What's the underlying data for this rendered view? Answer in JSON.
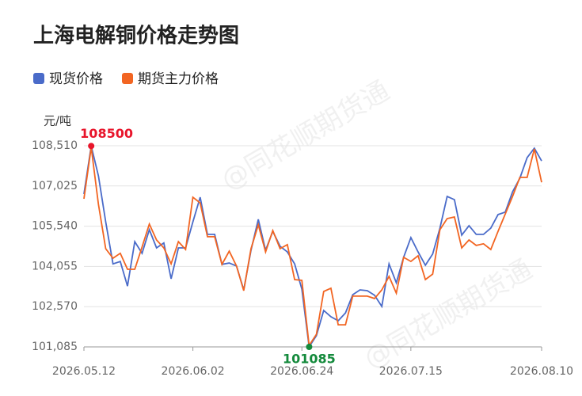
{
  "chart_data": {
    "type": "line",
    "title": "上海电解铜价格走势图",
    "y_unit": "元/吨",
    "watermark": "@同花顺期货通",
    "max_label": "108500",
    "min_label": "101085",
    "categories": [
      "2026.05.12",
      null,
      null,
      null,
      null,
      null,
      null,
      null,
      null,
      null,
      null,
      null,
      null,
      null,
      null,
      "2026.06.02",
      null,
      null,
      null,
      null,
      null,
      null,
      null,
      null,
      null,
      null,
      null,
      null,
      null,
      null,
      "2026.06.24",
      null,
      null,
      null,
      null,
      null,
      null,
      null,
      null,
      null,
      null,
      null,
      null,
      null,
      null,
      "2026.07.15",
      null,
      null,
      null,
      null,
      null,
      null,
      null,
      null,
      null,
      null,
      null,
      null,
      null,
      null,
      null,
      null,
      null,
      "2026.08.10"
    ],
    "series": [
      {
        "name": "现货价格",
        "color": "#4a6bc9",
        "values": [
          106727,
          108500,
          107400,
          105700,
          104150,
          104240,
          103330,
          104970,
          104540,
          105410,
          104740,
          104920,
          103600,
          104740,
          104740,
          105700,
          106610,
          105240,
          105240,
          104130,
          104180,
          104070,
          103190,
          104650,
          105790,
          104650,
          105350,
          104800,
          104590,
          104150,
          103220,
          101085,
          101500,
          102430,
          102200,
          102050,
          102340,
          103010,
          103190,
          103160,
          102990,
          102580,
          104150,
          103450,
          104390,
          105120,
          104590,
          104100,
          104510,
          105470,
          106640,
          106520,
          105210,
          105560,
          105240,
          105240,
          105470,
          105970,
          106060,
          106810,
          107310,
          108070,
          108420,
          107950
        ]
      },
      {
        "name": "期货主力价格",
        "color": "#f26522",
        "values": [
          106550,
          108450,
          106350,
          104710,
          104360,
          104540,
          103950,
          103950,
          104770,
          105620,
          105030,
          104740,
          104150,
          104970,
          104680,
          106610,
          106400,
          105150,
          105150,
          104130,
          104620,
          104070,
          103160,
          104710,
          105590,
          104590,
          105380,
          104710,
          104860,
          103570,
          103540,
          101140,
          101550,
          103130,
          103250,
          101900,
          101900,
          102960,
          102960,
          102960,
          102870,
          103190,
          103690,
          103070,
          104390,
          104240,
          104450,
          103570,
          103770,
          105410,
          105820,
          105880,
          104740,
          105030,
          104830,
          104890,
          104680,
          105350,
          105990,
          106640,
          107340,
          107340,
          108390,
          107160
        ]
      }
    ],
    "ylim": [
      101085,
      108510
    ],
    "yticks": [
      {
        "value": 101085,
        "label": "101,085"
      },
      {
        "value": 102570,
        "label": "102,570"
      },
      {
        "value": 104055,
        "label": "104,055"
      },
      {
        "value": 105540,
        "label": "105,540"
      },
      {
        "value": 107025,
        "label": "107,025"
      },
      {
        "value": 108510,
        "label": "108,510"
      }
    ],
    "grid": true,
    "max_color": "#e8152b",
    "min_color": "#148a3c"
  }
}
